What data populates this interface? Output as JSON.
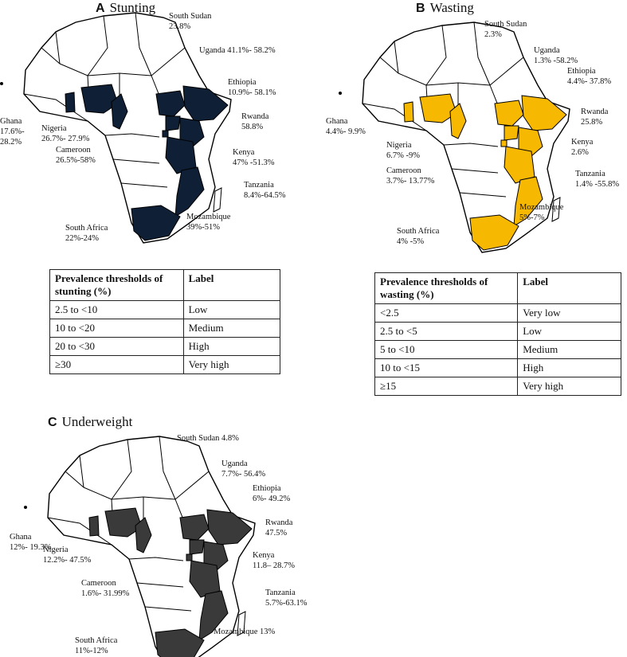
{
  "colors": {
    "stunting": "#0f1f35",
    "wasting": "#f6b800",
    "underweight": "#3a3a3a",
    "unaffected": "#ffffff",
    "border": "#000000"
  },
  "panels": {
    "a": {
      "letter": "A",
      "title": "Stunting",
      "labels": {
        "south_sudan": [
          "South Sudan",
          "23.8%"
        ],
        "uganda": [
          "Uganda 41.1%- 58.2%"
        ],
        "ethiopia": [
          "Ethiopia",
          "10.9%- 58.1%"
        ],
        "rwanda": [
          "Rwanda",
          "58.8%"
        ],
        "kenya": [
          "Kenya",
          "47% -51.3%"
        ],
        "tanzania": [
          "Tanzania",
          "8.4%-64.5%"
        ],
        "mozambique": [
          "Mozambique",
          "39%-51%"
        ],
        "south_africa": [
          "South Africa",
          "22%-24%"
        ],
        "ghana": [
          "Ghana",
          "17.6%-",
          "28.2%"
        ],
        "nigeria": [
          "Nigeria",
          "26.7%- 27.9%"
        ],
        "cameroon": [
          "Cameroon",
          "26.5%-58%"
        ]
      },
      "table": {
        "header": [
          "Prevalence thresholds of stunting (%)",
          "Label"
        ],
        "rows": [
          [
            "2.5 to <10",
            "Low"
          ],
          [
            "10 to <20",
            "Medium"
          ],
          [
            "20 to <30",
            "High"
          ],
          [
            "≥30",
            "Very high"
          ]
        ]
      }
    },
    "b": {
      "letter": "B",
      "title": "Wasting",
      "labels": {
        "south_sudan": [
          "South Sudan",
          "2.3%"
        ],
        "uganda": [
          "Uganda",
          "1.3% -58.2%"
        ],
        "ethiopia": [
          "Ethiopia",
          "4.4%- 37.8%"
        ],
        "rwanda": [
          "Rwanda",
          "25.8%"
        ],
        "kenya": [
          "Kenya",
          "2.6%"
        ],
        "tanzania": [
          "Tanzania",
          "1.4% -55.8%"
        ],
        "mozambique": [
          "Mozambique",
          "5%-7%"
        ],
        "south_africa": [
          "South Africa",
          "4% -5%"
        ],
        "ghana": [
          "Ghana",
          "4.4%- 9.9%"
        ],
        "nigeria": [
          "Nigeria",
          "6.7% -9%"
        ],
        "cameroon": [
          "Cameroon",
          "3.7%- 13.77%"
        ]
      },
      "table": {
        "header": [
          "Prevalence thresholds of wasting (%)",
          "Label"
        ],
        "rows": [
          [
            "<2.5",
            "Very low"
          ],
          [
            "2.5 to <5",
            "Low"
          ],
          [
            "5 to <10",
            "Medium"
          ],
          [
            "10 to <15",
            "High"
          ],
          [
            "≥15",
            "Very high"
          ]
        ]
      }
    },
    "c": {
      "letter": "C",
      "title": "Underweight",
      "labels": {
        "south_sudan": [
          "South Sudan 4.8%"
        ],
        "uganda": [
          "Uganda",
          "7.7%- 56.4%"
        ],
        "ethiopia": [
          "Ethiopia",
          "6%- 49.2%"
        ],
        "rwanda": [
          "Rwanda",
          "47.5%"
        ],
        "kenya": [
          "Kenya",
          "11.8– 28.7%"
        ],
        "tanzania": [
          "Tanzania",
          "5.7%-63.1%"
        ],
        "mozambique": [
          "Mozambique 13%"
        ],
        "south_africa": [
          "South Africa",
          "11%-12%"
        ],
        "ghana": [
          "Ghana",
          "12%- 19.3%"
        ],
        "nigeria": [
          "Nigeria",
          "12.2%- 47.5%"
        ],
        "cameroon": [
          "Cameroon",
          "1.6%- 31.99%"
        ]
      }
    }
  }
}
